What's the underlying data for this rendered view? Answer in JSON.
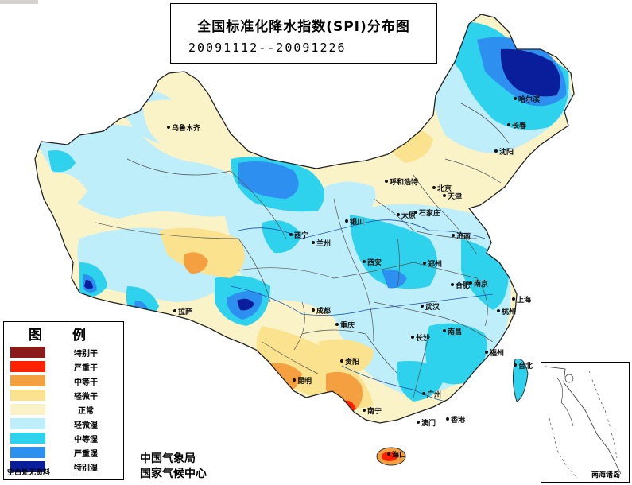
{
  "title": {
    "main": "全国标准化降水指数(SPI)分布图",
    "dates": "20091112--20091226"
  },
  "legend": {
    "title": "图 例",
    "items": [
      {
        "label": "特别干",
        "color": "#8b1a1a"
      },
      {
        "label": "严重干",
        "color": "#ff2200"
      },
      {
        "label": "中等干",
        "color": "#f5a040"
      },
      {
        "label": "轻微干",
        "color": "#fbe28e"
      },
      {
        "label": "正常",
        "color": "#fbf3c8"
      },
      {
        "label": "轻微湿",
        "color": "#bdeefa"
      },
      {
        "label": "中等湿",
        "color": "#2fd2ec"
      },
      {
        "label": "严重湿",
        "color": "#2d8ff0"
      },
      {
        "label": "特别湿",
        "color": "#0a1e9c"
      }
    ],
    "note": "空白处无资料"
  },
  "agency": {
    "line1": "中国气象局",
    "line2": "国家气候中心"
  },
  "inset_label": "南海诸岛",
  "cities": [
    {
      "name": "乌鲁木齐"
    },
    {
      "name": "哈尔滨"
    },
    {
      "name": "长春"
    },
    {
      "name": "沈阳"
    },
    {
      "name": "呼和浩特"
    },
    {
      "name": "北京"
    },
    {
      "name": "天津"
    },
    {
      "name": "太原"
    },
    {
      "name": "石家庄"
    },
    {
      "name": "银川"
    },
    {
      "name": "西宁"
    },
    {
      "name": "兰州"
    },
    {
      "name": "济南"
    },
    {
      "name": "西安"
    },
    {
      "name": "郑州"
    },
    {
      "name": "合肥"
    },
    {
      "name": "南京"
    },
    {
      "name": "上海"
    },
    {
      "name": "拉萨"
    },
    {
      "name": "成都"
    },
    {
      "name": "武汉"
    },
    {
      "name": "杭州"
    },
    {
      "name": "重庆"
    },
    {
      "name": "南昌"
    },
    {
      "name": "长沙"
    },
    {
      "name": "福州"
    },
    {
      "name": "贵阳"
    },
    {
      "name": "台北"
    },
    {
      "name": "昆明"
    },
    {
      "name": "广州"
    },
    {
      "name": "南宁"
    },
    {
      "name": "香港"
    },
    {
      "name": "澳门"
    },
    {
      "name": "海口"
    }
  ]
}
